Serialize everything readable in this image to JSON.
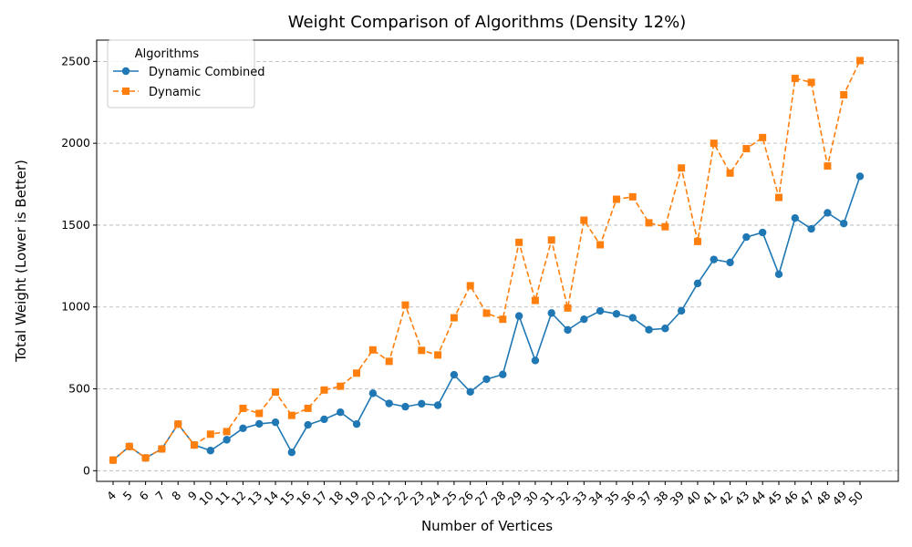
{
  "chart_data": {
    "type": "line",
    "title": "Weight Comparison of Algorithms (Density 12%)",
    "xlabel": "Number of Vertices",
    "ylabel": "Total Weight (Lower is Better)",
    "x": [
      4,
      5,
      6,
      7,
      8,
      9,
      10,
      11,
      12,
      13,
      14,
      15,
      16,
      17,
      18,
      19,
      20,
      21,
      22,
      23,
      24,
      25,
      26,
      27,
      28,
      29,
      30,
      31,
      32,
      33,
      34,
      35,
      36,
      37,
      38,
      39,
      40,
      41,
      42,
      43,
      44,
      45,
      46,
      47,
      48,
      49,
      50
    ],
    "ylim": [
      -65,
      2630
    ],
    "yticks": [
      0,
      500,
      1000,
      1500,
      2000,
      2500
    ],
    "grid": "horizontal dashed",
    "legend": {
      "title": "Algorithms",
      "placement": "top-left"
    },
    "series": [
      {
        "name": "Dynamic Combined",
        "color": "#1f77b4",
        "marker": "circle",
        "linestyle": "solid",
        "values": [
          65,
          148,
          78,
          133,
          285,
          157,
          123,
          189,
          259,
          286,
          296,
          112,
          280,
          314,
          357,
          285,
          473,
          411,
          391,
          409,
          400,
          586,
          482,
          559,
          588,
          945,
          673,
          963,
          860,
          925,
          976,
          958,
          934,
          861,
          869,
          977,
          1144,
          1290,
          1272,
          1427,
          1455,
          1200,
          1543,
          1477,
          1575,
          1510,
          1798
        ]
      },
      {
        "name": "Dynamic",
        "color": "#ff7f0e",
        "marker": "square",
        "linestyle": "dashed",
        "values": [
          65,
          148,
          78,
          133,
          285,
          157,
          223,
          239,
          381,
          350,
          480,
          338,
          381,
          493,
          516,
          596,
          738,
          668,
          1012,
          735,
          707,
          934,
          1130,
          962,
          925,
          1395,
          1040,
          1409,
          994,
          1530,
          1380,
          1658,
          1673,
          1514,
          1490,
          1849,
          1400,
          2000,
          1818,
          1967,
          2035,
          1669,
          2396,
          2372,
          1861,
          2296,
          2505
        ]
      }
    ]
  }
}
